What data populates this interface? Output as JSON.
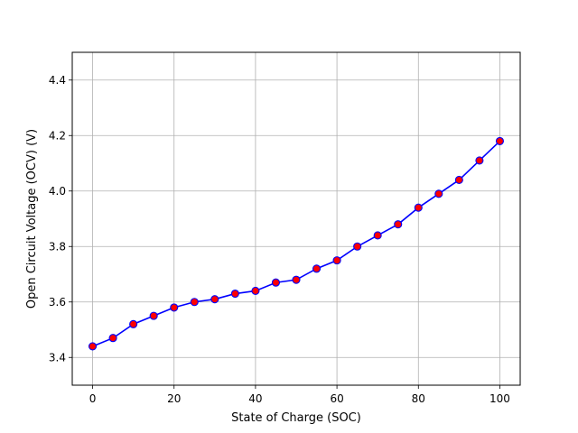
{
  "chart_data": {
    "type": "line",
    "xlabel": "State of Charge (SOC)",
    "ylabel": "Open Circuit Voltage (OCV) (V)",
    "xlim": [
      -5,
      105
    ],
    "ylim": [
      3.3,
      4.5
    ],
    "xticks": [
      0,
      20,
      40,
      60,
      80,
      100
    ],
    "yticks": [
      3.4,
      3.6,
      3.8,
      4.0,
      4.2,
      4.4
    ],
    "xtick_labels": [
      "0",
      "20",
      "40",
      "60",
      "80",
      "100"
    ],
    "ytick_labels": [
      "3.4",
      "3.6",
      "3.8",
      "4.0",
      "4.2",
      "4.4"
    ],
    "grid": true,
    "line_color": "#0000ff",
    "marker_face_color": "#ff0000",
    "marker_edge_color": "#0000ff",
    "series": [
      {
        "x": [
          0,
          5,
          10,
          15,
          20,
          25,
          30,
          35,
          40,
          45,
          50,
          55,
          60,
          65,
          70,
          75,
          80,
          85,
          90,
          95,
          100
        ],
        "y": [
          3.44,
          3.47,
          3.52,
          3.55,
          3.58,
          3.6,
          3.61,
          3.63,
          3.64,
          3.67,
          3.68,
          3.72,
          3.75,
          3.8,
          3.84,
          3.88,
          3.94,
          3.99,
          4.04,
          4.11,
          4.18
        ]
      }
    ]
  }
}
